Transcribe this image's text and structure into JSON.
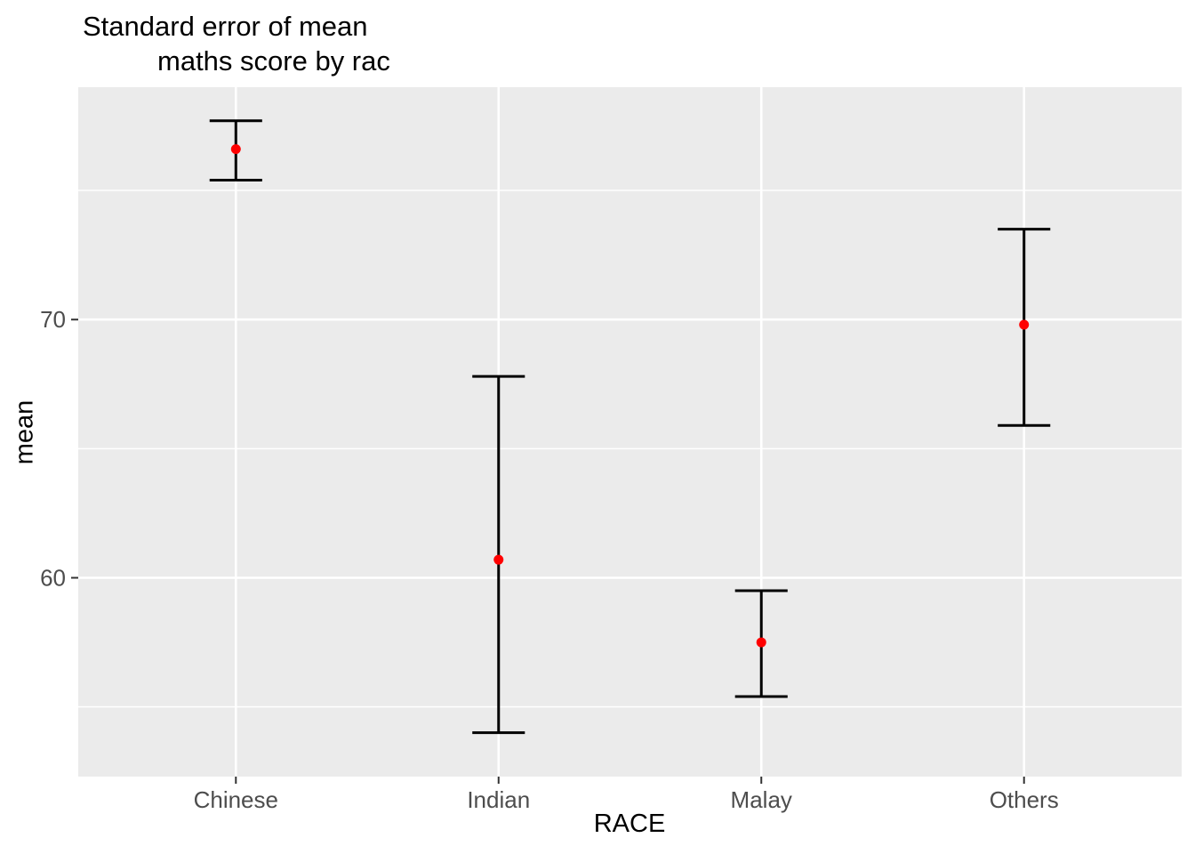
{
  "title": {
    "line1": "Standard error of mean",
    "line2": "maths score by rac"
  },
  "axes": {
    "x_title": "RACE",
    "y_title": "mean"
  },
  "chart_data": {
    "type": "scatter",
    "subtype": "point-with-errorbar",
    "title": "Standard error of mean maths score by rac",
    "xlabel": "RACE",
    "ylabel": "mean",
    "categories": [
      "Chinese",
      "Indian",
      "Malay",
      "Others"
    ],
    "series": [
      {
        "name": "mean",
        "values": [
          76.6,
          60.7,
          57.5,
          69.8
        ],
        "ymin": [
          75.4,
          54.0,
          55.4,
          65.9
        ],
        "ymax": [
          77.7,
          67.8,
          59.5,
          73.5
        ]
      }
    ],
    "ylim": [
      52.3,
      79.0
    ],
    "y_major_breaks": [
      60,
      70
    ],
    "y_minor_breaks": [
      55,
      65,
      75
    ],
    "y_tick_labels": [
      "60",
      "70"
    ],
    "grid": true,
    "legend_position": "none",
    "point_color": "#FF0000",
    "errorbar_color": "#000000",
    "panel_background": "#EBEBEB",
    "gridline_color": "#FFFFFF"
  },
  "style": {
    "tick_label_color": "#4D4D4D",
    "tick_mark_color": "#333333",
    "title_color": "#000000"
  }
}
